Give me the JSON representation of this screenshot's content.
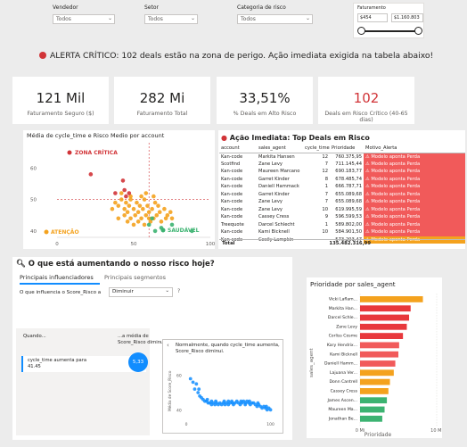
{
  "filters": [
    {
      "label": "Vendedor",
      "value": "Todos"
    },
    {
      "label": "Setor",
      "value": "Todos"
    },
    {
      "label": "Categoria de risco",
      "value": "Todos"
    }
  ],
  "faturamento": {
    "label": "Faturamento",
    "min": "$454",
    "max": "$1.160.803"
  },
  "alert": {
    "text": "ALERTA CRÍTICO: 102 deals estão na zona de perigo. Ação imediata exigida na tabela abaixo!",
    "color": "#d13438"
  },
  "kpis": [
    {
      "value": "121 Mil",
      "label": "Faturamento Seguro ($)",
      "color": "#252423"
    },
    {
      "value": "282 Mi",
      "label": "Faturamento Total",
      "color": "#252423"
    },
    {
      "value": "33,51%",
      "label": "% Deals em Alto Risco",
      "color": "#252423"
    },
    {
      "value": "102",
      "label": "Deals em Risco Crítico (40-65 dias)",
      "color": "#d13438"
    }
  ],
  "scatter": {
    "title": "Média de cycle_time e Risco Medio por account",
    "zones": {
      "critical": "ZONA CRÍTICA",
      "attention": "ATENÇÃO",
      "healthy": "SAUDÁVEL"
    },
    "chart_data": {
      "type": "scatter",
      "x_ticks": [
        "0",
        "50",
        "100"
      ],
      "y_ticks": [
        "60",
        "50",
        "40"
      ],
      "xlim": [
        0,
        100
      ],
      "ylim": [
        38,
        68
      ],
      "series": [
        {
          "color": "#f4a21e",
          "points": [
            [
              38,
              49
            ],
            [
              40,
              48
            ],
            [
              42,
              50
            ],
            [
              44,
              47
            ],
            [
              45,
              49
            ],
            [
              46,
              46
            ],
            [
              47,
              48
            ],
            [
              48,
              50
            ],
            [
              50,
              47
            ],
            [
              51,
              45
            ],
            [
              52,
              49
            ],
            [
              53,
              46
            ],
            [
              54,
              48
            ],
            [
              55,
              44
            ],
            [
              56,
              47
            ],
            [
              57,
              50
            ],
            [
              58,
              45
            ],
            [
              59,
              48
            ],
            [
              60,
              46
            ],
            [
              61,
              43
            ],
            [
              62,
              47
            ],
            [
              63,
              44
            ],
            [
              64,
              49
            ],
            [
              65,
              45
            ],
            [
              66,
              48
            ],
            [
              67,
              46
            ],
            [
              68,
              43
            ],
            [
              70,
              47
            ],
            [
              71,
              44
            ],
            [
              72,
              45
            ],
            [
              74,
              46
            ],
            [
              75,
              44
            ],
            [
              48,
              44
            ],
            [
              50,
              42
            ],
            [
              53,
              43
            ],
            [
              57,
              42
            ],
            [
              60,
              44
            ],
            [
              44,
              45
            ],
            [
              46,
              43
            ],
            [
              36,
              47
            ],
            [
              40,
              44
            ],
            [
              42,
              52
            ],
            [
              48,
              51
            ],
            [
              55,
              51
            ],
            [
              63,
              51
            ],
            [
              58,
              52
            ]
          ]
        },
        {
          "color": "#d13438",
          "points": [
            [
              22,
              58
            ],
            [
              43,
              56
            ],
            [
              45,
              51
            ],
            [
              47,
              52
            ],
            [
              44,
              53
            ],
            [
              38,
              52
            ]
          ]
        },
        {
          "color": "#3cb371",
          "points": [
            [
              60,
              42
            ],
            [
              64,
              40
            ],
            [
              68,
              41
            ],
            [
              62,
              44
            ],
            [
              88,
              40
            ],
            [
              75,
              42
            ]
          ]
        }
      ]
    }
  },
  "table": {
    "title": "Ação Imediata: Top Deals em Risco",
    "columns": [
      "account",
      "sales_agent",
      "cycle_time",
      "Prioridade",
      "Motivo_Alerta"
    ],
    "rows": [
      [
        "Kan-code",
        "Markita Hansen",
        "12",
        "760.375,95",
        "Modelo aponta Perda",
        "red"
      ],
      [
        "Scotfind",
        "Zane Levy",
        "7",
        "711.145,44",
        "Modelo aponta Perda",
        "red"
      ],
      [
        "Kan-code",
        "Maureen Marcano",
        "12",
        "690.183,77",
        "Modelo aponta Perda",
        "red"
      ],
      [
        "Kan-code",
        "Garret Kinder",
        "8",
        "678.485,74",
        "Modelo aponta Perda",
        "red"
      ],
      [
        "Kan-code",
        "Daniell Hammack",
        "1",
        "666.787,71",
        "Modelo aponta Perda",
        "red"
      ],
      [
        "Kan-code",
        "Garret Kinder",
        "7",
        "655.089,68",
        "Modelo aponta Perda",
        "red"
      ],
      [
        "Kan-code",
        "Zane Levy",
        "7",
        "655.089,68",
        "Modelo aponta Perda",
        "red"
      ],
      [
        "Kan-code",
        "Zane Levy",
        "10",
        "619.995,59",
        "Modelo aponta Perda",
        "red"
      ],
      [
        "Kan-code",
        "Cassey Cress",
        "9",
        "596.599,53",
        "Modelo aponta Perda",
        "red"
      ],
      [
        "Treequote",
        "Darcel Schlecht",
        "1",
        "589.802,00",
        "Modelo aponta Perda",
        "red"
      ],
      [
        "Kan-code",
        "Kami Bicknell",
        "10",
        "584.901,50",
        "Modelo aponta Perda",
        "red"
      ],
      [
        "Kan-code",
        "Cecily Lampkin",
        "",
        "573.203,47",
        "Modelo aponta Perda",
        "ora"
      ]
    ],
    "total_label": "Total",
    "total_value": "135.482.316,99"
  },
  "influencers": {
    "title": "O que está aumentando o nosso risco hoje?",
    "tabs": [
      "Principais influenciadores",
      "Principais segmentos"
    ],
    "question": "O que influencia o Score_Risco a",
    "dropdown": "Diminuir",
    "help": "?",
    "col_when": "Quando...",
    "col_avg": "...a média de Score_Risco diminui",
    "item_label": "cycle_time aumenta para 41.45",
    "bubble_value": "5,33",
    "detail_text": "Normalmente, quando cycle_time aumenta, Score_Risco diminui.",
    "detail_ylabel": "Média de Score_Risco",
    "chart_data": {
      "type": "scatter",
      "y_ticks": [
        "60",
        "40"
      ],
      "x_ticks": [
        "0",
        "100"
      ],
      "xlim": [
        0,
        110
      ],
      "ylim": [
        35,
        65
      ],
      "points": [
        [
          5,
          58
        ],
        [
          8,
          56
        ],
        [
          10,
          52
        ],
        [
          12,
          55
        ],
        [
          14,
          50
        ],
        [
          16,
          48
        ],
        [
          18,
          47
        ],
        [
          20,
          46
        ],
        [
          22,
          45
        ],
        [
          24,
          45
        ],
        [
          26,
          44
        ],
        [
          28,
          44
        ],
        [
          30,
          45
        ],
        [
          32,
          44
        ],
        [
          34,
          43
        ],
        [
          36,
          44
        ],
        [
          38,
          43
        ],
        [
          40,
          44
        ],
        [
          42,
          43
        ],
        [
          44,
          44
        ],
        [
          46,
          43
        ],
        [
          48,
          44
        ],
        [
          50,
          43
        ],
        [
          52,
          44
        ],
        [
          54,
          45
        ],
        [
          56,
          43
        ],
        [
          58,
          44
        ],
        [
          60,
          45
        ],
        [
          62,
          44
        ],
        [
          64,
          43
        ],
        [
          66,
          44
        ],
        [
          68,
          45
        ],
        [
          70,
          44
        ],
        [
          72,
          45
        ],
        [
          74,
          44
        ],
        [
          76,
          43
        ],
        [
          78,
          44
        ],
        [
          80,
          44
        ],
        [
          82,
          43
        ],
        [
          84,
          42
        ],
        [
          86,
          43
        ],
        [
          88,
          42
        ],
        [
          90,
          41
        ],
        [
          92,
          42
        ],
        [
          94,
          41
        ],
        [
          96,
          40
        ],
        [
          98,
          41
        ],
        [
          100,
          40
        ],
        [
          25,
          46
        ],
        [
          35,
          45
        ],
        [
          45,
          45
        ],
        [
          55,
          44
        ],
        [
          65,
          45
        ],
        [
          75,
          45
        ],
        [
          85,
          44
        ],
        [
          95,
          42
        ],
        [
          15,
          52
        ],
        [
          30,
          43
        ],
        [
          50,
          45
        ],
        [
          70,
          43
        ]
      ]
    }
  },
  "priority_chart": {
    "title": "Prioridade por sales_agent",
    "ylabel": "sales_agent",
    "xlabel": "Prioridade",
    "chart_data": {
      "type": "bar",
      "categories": [
        "Vicki Laflam...",
        "Markita Han...",
        "Darcel Schle...",
        "Zane Levy",
        "Corliss Cosme",
        "Kary Hendrix...",
        "Kami Bicknell",
        "Daniell Hamm...",
        "Lajuana Ver...",
        "Donn Cantrell",
        "Cassey Cress",
        "James Ascen...",
        "Maureen Ma...",
        "Jonathan Be..."
      ],
      "values": [
        8.2,
        6.6,
        6.4,
        6.1,
        5.6,
        5.1,
        5.0,
        4.6,
        4.4,
        3.9,
        3.7,
        3.5,
        3.2,
        2.9
      ],
      "colors": [
        "#f4a21e",
        "#e8383c",
        "#e8383c",
        "#e8383c",
        "#e8383c",
        "#f15a5a",
        "#f15a5a",
        "#f15a5a",
        "#f4a21e",
        "#f4a21e",
        "#f4a21e",
        "#3cb371",
        "#3cb371",
        "#3cb371"
      ],
      "x_ticks": [
        "0 Mi",
        "10 Mi"
      ],
      "xlim": [
        0,
        10
      ]
    }
  }
}
